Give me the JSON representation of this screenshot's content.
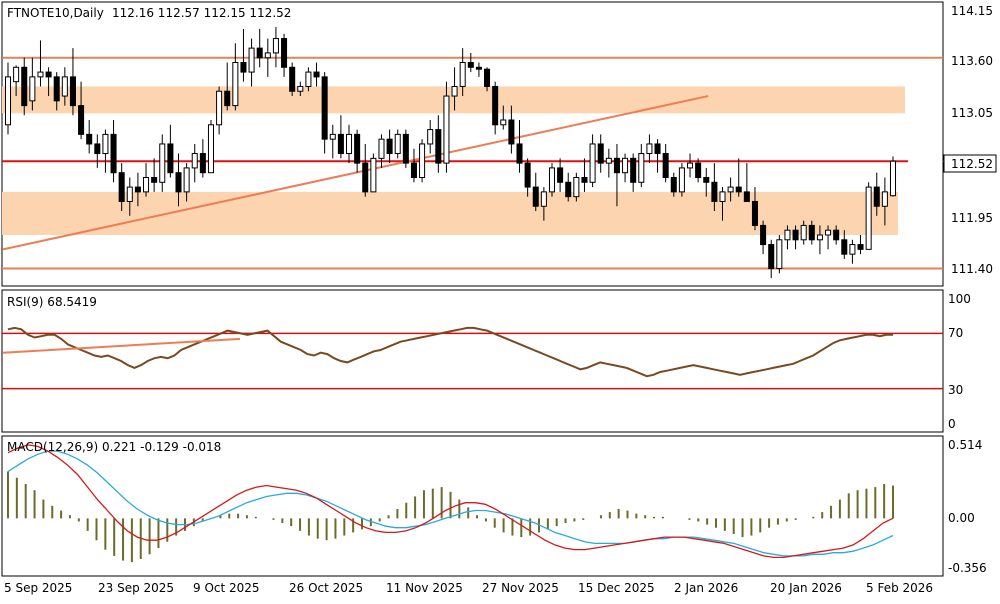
{
  "colors": {
    "background": "#ffffff",
    "text": "#000000",
    "grid": "#c8c8c8",
    "candle_body_up": "#ffffff",
    "candle_body_down": "#000000",
    "candle_outline": "#000000",
    "zone_fill": "#fcd5b0",
    "level_line": "#e0825a",
    "key_level": "#dd1111",
    "trendline": "#ee7d55",
    "rsi_line": "#7a4a1e",
    "rsi_level": "#d01010",
    "macd_hist": "#6b6b2b",
    "macd_line": "#d11a1a",
    "signal_line": "#2aa9e0",
    "price_tag_bg": "#ffffff"
  },
  "header": {
    "symbol": "FTNOTE10,Daily",
    "ohlc": "112.16 112.57 112.15 112.52"
  },
  "rsi_header": "RSI(9) 68.5419",
  "macd_header": "MACD(12,26,9) 0.221 -0.129 -0.018",
  "last_price_label": "112.52",
  "price_axis_labels": [
    "114.15",
    "113.60",
    "113.05",
    "112.52",
    "111.95",
    "111.40"
  ],
  "rsi_axis_labels": [
    "100",
    "70",
    "30",
    "0"
  ],
  "macd_axis_labels": [
    "0.514",
    "0.00",
    "-0.356"
  ],
  "date_labels": [
    "5 Sep 2025",
    "23 Sep 2025",
    "9 Oct 2025",
    "26 Oct 2025",
    "11 Nov 2025",
    "27 Nov 2025",
    "15 Dec 2025",
    "2 Jan 2026",
    "20 Jan 2026",
    "5 Feb 2026"
  ],
  "chart_data": {
    "type": "candlestick",
    "price_range": [
      111.27,
      114.15
    ],
    "rsi_range": [
      0,
      100
    ],
    "macd_range": [
      -0.356,
      0.514
    ],
    "grid": false,
    "candles": [
      [
        112.9,
        113.55,
        112.8,
        113.4
      ],
      [
        113.35,
        113.52,
        113.2,
        113.5
      ],
      [
        113.5,
        113.6,
        113.0,
        113.1
      ],
      [
        113.15,
        113.6,
        113.05,
        113.4
      ],
      [
        113.4,
        113.78,
        113.3,
        113.45
      ],
      [
        113.45,
        113.5,
        113.2,
        113.4
      ],
      [
        113.4,
        113.45,
        113.05,
        113.15
      ],
      [
        113.2,
        113.5,
        113.1,
        113.4
      ],
      [
        113.4,
        113.7,
        113.0,
        113.1
      ],
      [
        113.1,
        113.35,
        112.75,
        112.8
      ],
      [
        112.8,
        112.95,
        112.6,
        112.7
      ],
      [
        112.7,
        112.8,
        112.45,
        112.6
      ],
      [
        112.6,
        112.85,
        112.4,
        112.8
      ],
      [
        112.8,
        112.95,
        112.3,
        112.4
      ],
      [
        112.4,
        112.5,
        112.0,
        112.1
      ],
      [
        112.1,
        112.35,
        111.95,
        112.25
      ],
      [
        112.25,
        112.4,
        112.05,
        112.2
      ],
      [
        112.2,
        112.5,
        112.15,
        112.35
      ],
      [
        112.35,
        112.55,
        112.2,
        112.3
      ],
      [
        112.3,
        112.8,
        112.2,
        112.7
      ],
      [
        112.7,
        112.9,
        112.35,
        112.4
      ],
      [
        112.4,
        112.6,
        112.05,
        112.2
      ],
      [
        112.2,
        112.5,
        112.1,
        112.45
      ],
      [
        112.45,
        112.7,
        112.3,
        112.6
      ],
      [
        112.6,
        112.75,
        112.35,
        112.4
      ],
      [
        112.4,
        112.95,
        112.4,
        112.9
      ],
      [
        112.9,
        113.3,
        112.8,
        113.25
      ],
      [
        113.25,
        113.55,
        113.05,
        113.1
      ],
      [
        113.1,
        113.75,
        113.05,
        113.55
      ],
      [
        113.55,
        113.9,
        113.35,
        113.45
      ],
      [
        113.45,
        113.8,
        113.3,
        113.7
      ],
      [
        113.7,
        113.9,
        113.5,
        113.6
      ],
      [
        113.6,
        113.8,
        113.4,
        113.65
      ],
      [
        113.65,
        113.92,
        113.5,
        113.8
      ],
      [
        113.8,
        113.85,
        113.4,
        113.5
      ],
      [
        113.5,
        113.55,
        113.2,
        113.25
      ],
      [
        113.25,
        113.35,
        113.2,
        113.3
      ],
      [
        113.3,
        113.5,
        113.25,
        113.45
      ],
      [
        113.45,
        113.55,
        113.3,
        113.4
      ],
      [
        113.4,
        113.45,
        112.6,
        112.75
      ],
      [
        112.75,
        112.9,
        112.55,
        112.8
      ],
      [
        112.8,
        113.0,
        112.55,
        112.6
      ],
      [
        112.6,
        112.9,
        112.5,
        112.8
      ],
      [
        112.8,
        112.85,
        112.4,
        112.5
      ],
      [
        112.5,
        112.7,
        112.15,
        112.2
      ],
      [
        112.2,
        112.6,
        112.2,
        112.55
      ],
      [
        112.55,
        112.8,
        112.45,
        112.75
      ],
      [
        112.75,
        112.85,
        112.5,
        112.6
      ],
      [
        112.6,
        112.85,
        112.55,
        112.8
      ],
      [
        112.8,
        112.85,
        112.45,
        112.5
      ],
      [
        112.5,
        112.65,
        112.3,
        112.35
      ],
      [
        112.35,
        112.75,
        112.3,
        112.7
      ],
      [
        112.7,
        112.95,
        112.6,
        112.85
      ],
      [
        112.85,
        113.0,
        112.4,
        112.5
      ],
      [
        112.5,
        113.35,
        112.4,
        113.2
      ],
      [
        113.2,
        113.5,
        113.05,
        113.3
      ],
      [
        113.3,
        113.7,
        113.2,
        113.55
      ],
      [
        113.55,
        113.65,
        113.45,
        113.5
      ],
      [
        113.5,
        113.55,
        113.4,
        113.48
      ],
      [
        113.48,
        113.5,
        113.25,
        113.3
      ],
      [
        113.3,
        113.35,
        112.8,
        112.9
      ],
      [
        112.9,
        113.1,
        112.85,
        112.95
      ],
      [
        112.95,
        113.1,
        112.6,
        112.7
      ],
      [
        112.7,
        112.95,
        112.4,
        112.5
      ],
      [
        112.5,
        112.55,
        112.15,
        112.25
      ],
      [
        112.25,
        112.4,
        112.0,
        112.05
      ],
      [
        112.05,
        112.25,
        111.9,
        112.2
      ],
      [
        112.2,
        112.5,
        112.15,
        112.45
      ],
      [
        112.45,
        112.55,
        112.2,
        112.3
      ],
      [
        112.3,
        112.4,
        112.1,
        112.15
      ],
      [
        112.15,
        112.4,
        112.1,
        112.35
      ],
      [
        112.35,
        112.55,
        112.2,
        112.3
      ],
      [
        112.3,
        112.8,
        112.25,
        112.7
      ],
      [
        112.7,
        112.8,
        112.4,
        112.5
      ],
      [
        112.5,
        112.65,
        112.35,
        112.55
      ],
      [
        112.55,
        112.7,
        112.05,
        112.4
      ],
      [
        112.4,
        112.6,
        112.3,
        112.55
      ],
      [
        112.55,
        112.6,
        112.2,
        112.3
      ],
      [
        112.3,
        112.7,
        112.25,
        112.6
      ],
      [
        112.6,
        112.8,
        112.5,
        112.7
      ],
      [
        112.7,
        112.75,
        112.4,
        112.6
      ],
      [
        112.6,
        112.7,
        112.3,
        112.35
      ],
      [
        112.35,
        112.4,
        112.15,
        112.2
      ],
      [
        112.2,
        112.5,
        112.15,
        112.45
      ],
      [
        112.45,
        112.6,
        112.35,
        112.5
      ],
      [
        112.5,
        112.55,
        112.3,
        112.35
      ],
      [
        112.35,
        112.45,
        112.15,
        112.3
      ],
      [
        112.3,
        112.5,
        112.0,
        112.1
      ],
      [
        112.1,
        112.25,
        111.9,
        112.2
      ],
      [
        112.2,
        112.35,
        112.1,
        112.25
      ],
      [
        112.25,
        112.55,
        112.15,
        112.2
      ],
      [
        112.2,
        112.5,
        112.1,
        112.1
      ],
      [
        112.1,
        112.25,
        111.8,
        111.85
      ],
      [
        111.85,
        111.9,
        111.55,
        111.65
      ],
      [
        111.65,
        111.7,
        111.3,
        111.4
      ],
      [
        111.4,
        111.75,
        111.35,
        111.7
      ],
      [
        111.7,
        111.85,
        111.6,
        111.8
      ],
      [
        111.8,
        111.85,
        111.6,
        111.7
      ],
      [
        111.7,
        111.9,
        111.65,
        111.85
      ],
      [
        111.85,
        111.9,
        111.65,
        111.7
      ],
      [
        111.7,
        111.85,
        111.55,
        111.75
      ],
      [
        111.75,
        111.85,
        111.6,
        111.8
      ],
      [
        111.8,
        111.85,
        111.65,
        111.7
      ],
      [
        111.7,
        111.8,
        111.5,
        111.55
      ],
      [
        111.55,
        111.7,
        111.45,
        111.65
      ],
      [
        111.65,
        111.75,
        111.55,
        111.6
      ],
      [
        111.6,
        112.3,
        111.6,
        112.25
      ],
      [
        112.25,
        112.4,
        111.95,
        112.05
      ],
      [
        112.05,
        112.35,
        111.85,
        112.2
      ],
      [
        112.16,
        112.57,
        112.15,
        112.52
      ]
    ],
    "zones": [
      {
        "top": 113.3,
        "bottom": 113.02,
        "x_start": 0,
        "x_end": 1
      },
      {
        "top": 112.2,
        "bottom": 111.75,
        "x_start": 0,
        "x_end": 0.98
      }
    ],
    "horizontal_levels": [
      113.6,
      112.52,
      111.4
    ],
    "trendline": {
      "from_index": 0,
      "from_value": 111.6,
      "to_index": 85,
      "to_value": 113.2
    },
    "rsi": {
      "values": [
        73,
        74,
        73,
        69,
        67,
        68,
        69,
        69,
        66,
        62,
        60,
        58,
        56,
        54,
        53,
        54,
        52,
        50,
        47,
        45,
        47,
        50,
        52,
        53,
        52,
        54,
        58,
        60,
        62,
        64,
        66,
        68,
        70,
        72,
        71,
        70,
        69,
        70,
        71,
        72,
        68,
        64,
        62,
        60,
        58,
        55,
        54,
        56,
        55,
        52,
        50,
        49,
        51,
        53,
        55,
        57,
        58,
        60,
        62,
        64,
        65,
        66,
        67,
        68,
        69,
        70,
        71,
        72,
        73,
        74,
        74,
        73,
        72,
        70,
        68,
        66,
        64,
        62,
        60,
        58,
        56,
        54,
        52,
        50,
        48,
        46,
        44,
        45,
        47,
        49,
        48,
        47,
        46,
        45,
        43,
        41,
        39,
        40,
        42,
        43,
        44,
        45,
        46,
        47,
        46,
        45,
        44,
        43,
        42,
        41,
        40,
        41,
        42,
        43,
        44,
        45,
        46,
        47,
        48,
        50,
        52,
        54,
        57,
        60,
        63,
        65,
        66,
        67,
        68,
        69,
        69,
        68,
        69,
        69
      ],
      "levels": [
        70,
        30
      ],
      "trendline": {
        "from_value": 56,
        "to_value": 66
      }
    },
    "macd": {
      "histogram": [
        0.3,
        0.26,
        0.22,
        0.18,
        0.12,
        0.08,
        0.05,
        0.02,
        -0.02,
        -0.08,
        -0.14,
        -0.2,
        -0.24,
        -0.27,
        -0.28,
        -0.26,
        -0.23,
        -0.19,
        -0.15,
        -0.11,
        -0.08,
        -0.05,
        -0.02,
        0.0,
        0.02,
        0.03,
        0.03,
        0.02,
        0.01,
        0.0,
        -0.01,
        -0.03,
        -0.05,
        -0.08,
        -0.11,
        -0.13,
        -0.14,
        -0.13,
        -0.11,
        -0.09,
        -0.07,
        -0.05,
        -0.02,
        0.02,
        0.06,
        0.1,
        0.14,
        0.18,
        0.19,
        0.2,
        0.17,
        0.12,
        0.07,
        0.02,
        -0.02,
        -0.06,
        -0.09,
        -0.11,
        -0.12,
        -0.11,
        -0.09,
        -0.07,
        -0.05,
        -0.03,
        -0.02,
        -0.01,
        0.0,
        0.02,
        0.04,
        0.06,
        0.05,
        0.03,
        0.02,
        0.01,
        0.01,
        0.0,
        0.0,
        -0.01,
        -0.02,
        -0.04,
        -0.06,
        -0.08,
        -0.1,
        -0.12,
        -0.11,
        -0.09,
        -0.06,
        -0.04,
        -0.02,
        -0.01,
        0.0,
        0.01,
        0.04,
        0.08,
        0.12,
        0.16,
        0.18,
        0.19,
        0.2,
        0.22,
        0.21
      ],
      "macd_line": [
        0.42,
        0.45,
        0.47,
        0.46,
        0.43,
        0.39,
        0.34,
        0.28,
        0.2,
        0.12,
        0.05,
        -0.02,
        -0.08,
        -0.12,
        -0.14,
        -0.14,
        -0.12,
        -0.09,
        -0.05,
        -0.01,
        0.03,
        0.07,
        0.11,
        0.15,
        0.18,
        0.2,
        0.21,
        0.2,
        0.19,
        0.18,
        0.16,
        0.13,
        0.09,
        0.05,
        0.01,
        -0.03,
        -0.06,
        -0.08,
        -0.09,
        -0.09,
        -0.08,
        -0.06,
        -0.03,
        0.01,
        0.05,
        0.08,
        0.1,
        0.1,
        0.09,
        0.06,
        0.02,
        -0.02,
        -0.06,
        -0.1,
        -0.14,
        -0.17,
        -0.19,
        -0.2,
        -0.2,
        -0.19,
        -0.18,
        -0.17,
        -0.16,
        -0.15,
        -0.14,
        -0.13,
        -0.12,
        -0.12,
        -0.12,
        -0.13,
        -0.14,
        -0.15,
        -0.16,
        -0.18,
        -0.2,
        -0.22,
        -0.24,
        -0.25,
        -0.25,
        -0.24,
        -0.23,
        -0.22,
        -0.21,
        -0.2,
        -0.19,
        -0.17,
        -0.13,
        -0.08,
        -0.03,
        0.0
      ],
      "signal_line": [
        0.3,
        0.34,
        0.38,
        0.41,
        0.43,
        0.43,
        0.41,
        0.38,
        0.34,
        0.29,
        0.23,
        0.17,
        0.11,
        0.06,
        0.02,
        -0.01,
        -0.03,
        -0.04,
        -0.04,
        -0.03,
        -0.01,
        0.01,
        0.04,
        0.07,
        0.1,
        0.12,
        0.14,
        0.15,
        0.16,
        0.16,
        0.15,
        0.13,
        0.11,
        0.08,
        0.05,
        0.02,
        -0.01,
        -0.03,
        -0.05,
        -0.06,
        -0.06,
        -0.05,
        -0.04,
        -0.02,
        0.0,
        0.02,
        0.04,
        0.05,
        0.05,
        0.04,
        0.03,
        0.01,
        -0.01,
        -0.03,
        -0.06,
        -0.09,
        -0.11,
        -0.13,
        -0.15,
        -0.16,
        -0.16,
        -0.16,
        -0.16,
        -0.15,
        -0.14,
        -0.13,
        -0.13,
        -0.12,
        -0.12,
        -0.12,
        -0.13,
        -0.14,
        -0.15,
        -0.16,
        -0.18,
        -0.2,
        -0.22,
        -0.23,
        -0.24,
        -0.24,
        -0.24,
        -0.23,
        -0.23,
        -0.22,
        -0.22,
        -0.21,
        -0.19,
        -0.17,
        -0.14,
        -0.11
      ]
    }
  }
}
